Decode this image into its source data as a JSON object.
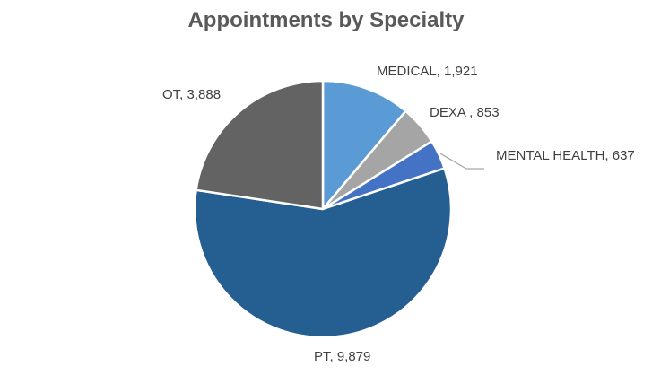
{
  "chart_data": {
    "type": "pie",
    "title": "Appointments by Specialty",
    "slices": [
      {
        "label": "MEDICAL",
        "value": 1921,
        "display": "MEDICAL,  1,921",
        "color": "#5B9BD5"
      },
      {
        "label": "DEXA",
        "value": 853,
        "display": "DEXA ,  853",
        "color": "#A5A5A5"
      },
      {
        "label": "MENTAL HEALTH",
        "value": 637,
        "display": "MENTAL HEALTH,  637",
        "color": "#4472C4"
      },
      {
        "label": "PT",
        "value": 9879,
        "display": "PT,  9,879",
        "color": "#255E91"
      },
      {
        "label": "OT",
        "value": 3888,
        "display": "OT,  3,888",
        "color": "#636363"
      }
    ],
    "start_angle_deg": 0,
    "direction": "clockwise"
  }
}
